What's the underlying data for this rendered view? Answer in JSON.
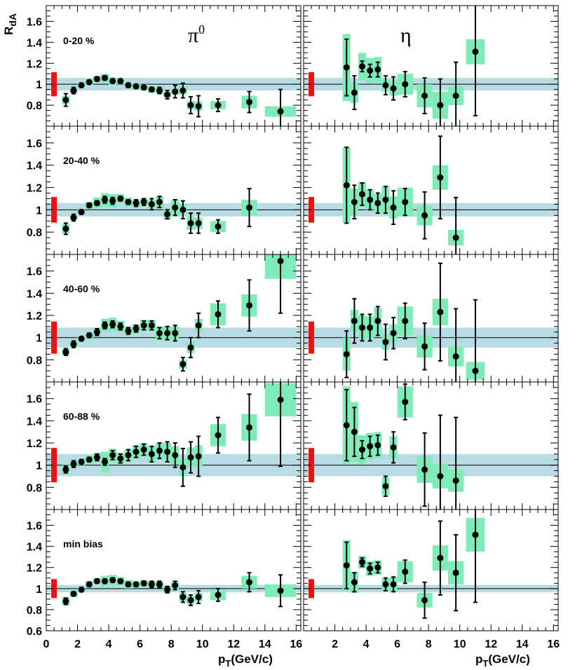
{
  "chart_data": {
    "type": "scatter",
    "ylabel": "R",
    "ylabel_sub": "dA",
    "xlabel": "p",
    "xlabel_sub": "T",
    "xlabel_unit": "(GeV/c)",
    "xlim": [
      0,
      16.3
    ],
    "x_ticks": [
      0,
      2,
      4,
      6,
      8,
      10,
      12,
      14,
      16
    ],
    "x_tick_labels_left": [
      "0",
      "2",
      "4",
      "6",
      "8",
      "10",
      "12",
      "14",
      "16"
    ],
    "x_tick_labels_right": [
      "2",
      "4",
      "6",
      "8",
      "10",
      "12",
      "14",
      "16"
    ],
    "ylim": [
      0.6,
      1.75
    ],
    "y_ticks": [
      0.8,
      1.0,
      1.2,
      1.4,
      1.6
    ],
    "y_tick_labels": [
      "0.8",
      "1",
      "1.2",
      "1.4",
      "1.6"
    ],
    "y_tick_labels_bottom_row": [
      "0.6",
      "0.8",
      "1",
      "1.2",
      "1.4",
      "1.6"
    ],
    "columns": [
      "π0",
      "η"
    ],
    "colors": {
      "point": "#000000",
      "syst_box": "#7eebb8",
      "norm_band": "#b9dbe3",
      "global_err": "#ee1111",
      "ref_line": "#000000"
    },
    "panels": [
      {
        "centrality": "0-20 %",
        "norm_band": [
          0.94,
          1.06
        ],
        "pi0": [
          [
            1.25,
            0.85,
            0.06,
            0.04
          ],
          [
            1.75,
            0.94,
            0.03,
            0.03
          ],
          [
            2.25,
            0.99,
            0.02,
            0.025
          ],
          [
            2.75,
            1.02,
            0.02,
            0.025
          ],
          [
            3.25,
            1.05,
            0.02,
            0.03
          ],
          [
            3.75,
            1.06,
            0.02,
            0.04
          ],
          [
            4.25,
            1.03,
            0.02,
            0.035
          ],
          [
            4.75,
            1.03,
            0.02,
            0.03
          ],
          [
            5.25,
            0.99,
            0.02,
            0.03
          ],
          [
            5.75,
            0.98,
            0.02,
            0.03
          ],
          [
            6.25,
            0.97,
            0.02,
            0.03
          ],
          [
            6.75,
            0.95,
            0.02,
            0.03
          ],
          [
            7.25,
            0.94,
            0.03,
            0.03
          ],
          [
            7.75,
            0.9,
            0.04,
            0.03
          ],
          [
            8.25,
            0.93,
            0.06,
            0.03
          ],
          [
            8.75,
            0.94,
            0.07,
            0.04
          ],
          [
            9.25,
            0.8,
            0.08,
            0.04
          ],
          [
            9.75,
            0.79,
            0.1,
            0.045
          ],
          [
            11.0,
            0.8,
            0.06,
            0.04
          ],
          [
            13.0,
            0.83,
            0.1,
            0.06
          ],
          [
            15.0,
            0.74,
            0.21,
            0.05
          ]
        ],
        "eta": [
          [
            2.75,
            1.16,
            0.27,
            0.32
          ],
          [
            3.25,
            0.92,
            0.16,
            0.1
          ],
          [
            3.75,
            1.17,
            0.05,
            0.13
          ],
          [
            4.25,
            1.13,
            0.06,
            0.12
          ],
          [
            4.75,
            1.14,
            0.07,
            0.12
          ],
          [
            5.25,
            0.99,
            0.09,
            0.06
          ],
          [
            5.75,
            0.96,
            0.11,
            0.07
          ],
          [
            6.5,
            1.0,
            0.12,
            0.1
          ],
          [
            7.75,
            0.89,
            0.17,
            0.11
          ],
          [
            8.75,
            0.8,
            0.25,
            0.13
          ],
          [
            9.75,
            0.89,
            0.32,
            0.09
          ],
          [
            11.0,
            1.31,
            0.61,
            0.12
          ]
        ]
      },
      {
        "centrality": "20-40 %",
        "norm_band": [
          0.94,
          1.06
        ],
        "pi0": [
          [
            1.25,
            0.83,
            0.05,
            0.04
          ],
          [
            1.75,
            0.93,
            0.03,
            0.02
          ],
          [
            2.25,
            0.98,
            0.02,
            0.02
          ],
          [
            2.75,
            1.04,
            0.02,
            0.03
          ],
          [
            3.25,
            1.06,
            0.02,
            0.05
          ],
          [
            3.75,
            1.09,
            0.03,
            0.06
          ],
          [
            4.25,
            1.08,
            0.03,
            0.06
          ],
          [
            4.75,
            1.1,
            0.02,
            0.04
          ],
          [
            5.25,
            1.07,
            0.02,
            0.04
          ],
          [
            5.75,
            1.06,
            0.03,
            0.03
          ],
          [
            6.25,
            1.07,
            0.03,
            0.03
          ],
          [
            6.75,
            1.05,
            0.05,
            0.04
          ],
          [
            7.25,
            1.07,
            0.05,
            0.05
          ],
          [
            7.75,
            0.96,
            0.04,
            0.05
          ],
          [
            8.25,
            1.02,
            0.07,
            0.07
          ],
          [
            8.75,
            1.0,
            0.08,
            0.05
          ],
          [
            9.25,
            0.88,
            0.09,
            0.06
          ],
          [
            9.75,
            0.88,
            0.09,
            0.05
          ],
          [
            11.0,
            0.85,
            0.06,
            0.05
          ],
          [
            13.0,
            1.02,
            0.17,
            0.07
          ]
        ],
        "eta": [
          [
            2.75,
            1.22,
            0.34,
            0.34
          ],
          [
            3.25,
            1.07,
            0.15,
            0.12
          ],
          [
            3.75,
            1.14,
            0.1,
            0.11
          ],
          [
            4.25,
            1.09,
            0.09,
            0.09
          ],
          [
            4.75,
            1.06,
            0.09,
            0.08
          ],
          [
            5.25,
            1.09,
            0.12,
            0.12
          ],
          [
            5.75,
            1.02,
            0.15,
            0.1
          ],
          [
            6.5,
            1.07,
            0.12,
            0.13
          ],
          [
            7.75,
            0.95,
            0.21,
            0.09
          ],
          [
            8.75,
            1.29,
            0.37,
            0.11
          ],
          [
            9.75,
            0.75,
            0.36,
            0.07
          ]
        ]
      },
      {
        "centrality": "40-60 %",
        "norm_band": [
          0.91,
          1.09
        ],
        "pi0": [
          [
            1.25,
            0.87,
            0.03,
            0.03
          ],
          [
            1.75,
            0.94,
            0.03,
            0.03
          ],
          [
            2.25,
            0.99,
            0.02,
            0.02
          ],
          [
            2.75,
            1.02,
            0.02,
            0.03
          ],
          [
            3.25,
            1.05,
            0.03,
            0.04
          ],
          [
            3.75,
            1.11,
            0.03,
            0.06
          ],
          [
            4.25,
            1.12,
            0.03,
            0.06
          ],
          [
            4.75,
            1.1,
            0.03,
            0.05
          ],
          [
            5.25,
            1.06,
            0.03,
            0.04
          ],
          [
            5.75,
            1.08,
            0.03,
            0.04
          ],
          [
            6.25,
            1.11,
            0.04,
            0.05
          ],
          [
            6.75,
            1.11,
            0.04,
            0.05
          ],
          [
            7.25,
            1.04,
            0.05,
            0.06
          ],
          [
            7.75,
            1.04,
            0.06,
            0.06
          ],
          [
            8.25,
            1.04,
            0.07,
            0.06
          ],
          [
            8.75,
            0.76,
            0.06,
            0.04
          ],
          [
            9.25,
            0.91,
            0.09,
            0.05
          ],
          [
            9.75,
            1.11,
            0.11,
            0.06
          ],
          [
            11.0,
            1.21,
            0.12,
            0.1
          ],
          [
            13.0,
            1.29,
            0.23,
            0.1
          ],
          [
            15.0,
            1.69,
            0.47,
            0.16
          ]
        ],
        "eta": [
          [
            2.75,
            0.85,
            0.21,
            0.15
          ],
          [
            3.25,
            1.15,
            0.2,
            0.1
          ],
          [
            3.75,
            1.09,
            0.12,
            0.11
          ],
          [
            4.25,
            1.09,
            0.12,
            0.1
          ],
          [
            4.75,
            1.15,
            0.13,
            0.12
          ],
          [
            5.25,
            0.96,
            0.16,
            0.07
          ],
          [
            5.75,
            1.04,
            0.14,
            0.08
          ],
          [
            6.5,
            1.15,
            0.16,
            0.13
          ],
          [
            7.75,
            0.92,
            0.21,
            0.1
          ],
          [
            8.75,
            1.23,
            0.44,
            0.12
          ],
          [
            9.75,
            0.83,
            0.43,
            0.09
          ],
          [
            11.0,
            0.7,
            0.64,
            0.08
          ]
        ]
      },
      {
        "centrality": "60-88 %",
        "norm_band": [
          0.9,
          1.1
        ],
        "pi0": [
          [
            1.25,
            0.96,
            0.03,
            0.04
          ],
          [
            1.75,
            1.01,
            0.03,
            0.03
          ],
          [
            2.25,
            1.03,
            0.02,
            0.03
          ],
          [
            2.75,
            1.05,
            0.02,
            0.04
          ],
          [
            3.25,
            1.07,
            0.03,
            0.04
          ],
          [
            3.75,
            1.03,
            0.03,
            0.09
          ],
          [
            4.25,
            1.09,
            0.04,
            0.06
          ],
          [
            4.75,
            1.06,
            0.04,
            0.05
          ],
          [
            5.25,
            1.09,
            0.05,
            0.05
          ],
          [
            5.75,
            1.12,
            0.05,
            0.06
          ],
          [
            6.25,
            1.14,
            0.05,
            0.06
          ],
          [
            6.75,
            1.1,
            0.07,
            0.07
          ],
          [
            7.25,
            1.13,
            0.07,
            0.07
          ],
          [
            7.75,
            1.12,
            0.09,
            0.08
          ],
          [
            8.25,
            1.09,
            0.11,
            0.08
          ],
          [
            8.75,
            0.98,
            0.17,
            0.08
          ],
          [
            9.25,
            1.07,
            0.14,
            0.09
          ],
          [
            9.75,
            1.08,
            0.18,
            0.1
          ],
          [
            11.0,
            1.27,
            0.16,
            0.1
          ],
          [
            13.0,
            1.34,
            0.3,
            0.12
          ],
          [
            15.0,
            1.59,
            0.6,
            0.15
          ]
        ],
        "eta": [
          [
            2.75,
            1.36,
            0.32,
            0.35
          ],
          [
            3.25,
            1.3,
            0.22,
            0.27
          ],
          [
            3.75,
            1.14,
            0.08,
            0.13
          ],
          [
            4.25,
            1.17,
            0.09,
            0.12
          ],
          [
            4.75,
            1.18,
            0.09,
            0.12
          ],
          [
            5.25,
            0.81,
            0.09,
            0.08
          ],
          [
            5.75,
            1.16,
            0.14,
            0.1
          ],
          [
            6.5,
            1.57,
            0.16,
            0.14
          ],
          [
            7.75,
            0.96,
            0.33,
            0.12
          ],
          [
            8.75,
            0.9,
            0.55,
            0.11
          ],
          [
            9.75,
            0.86,
            0.57,
            0.1
          ]
        ]
      },
      {
        "centrality": "min bias",
        "norm_band": [
          0.965,
          1.035
        ],
        "pi0": [
          [
            1.25,
            0.88,
            0.03,
            0.04
          ],
          [
            1.75,
            0.95,
            0.02,
            0.03
          ],
          [
            2.25,
            0.99,
            0.02,
            0.02
          ],
          [
            2.75,
            1.04,
            0.02,
            0.03
          ],
          [
            3.25,
            1.07,
            0.02,
            0.03
          ],
          [
            3.75,
            1.07,
            0.02,
            0.05
          ],
          [
            4.25,
            1.08,
            0.02,
            0.05
          ],
          [
            4.75,
            1.07,
            0.02,
            0.04
          ],
          [
            5.25,
            1.04,
            0.02,
            0.04
          ],
          [
            5.75,
            1.04,
            0.02,
            0.03
          ],
          [
            6.25,
            1.05,
            0.02,
            0.03
          ],
          [
            6.75,
            1.04,
            0.03,
            0.03
          ],
          [
            7.25,
            1.04,
            0.03,
            0.03
          ],
          [
            7.75,
            0.99,
            0.03,
            0.03
          ],
          [
            8.25,
            1.03,
            0.04,
            0.04
          ],
          [
            8.75,
            0.92,
            0.05,
            0.04
          ],
          [
            9.25,
            0.89,
            0.05,
            0.04
          ],
          [
            9.75,
            0.92,
            0.06,
            0.04
          ],
          [
            11.0,
            0.94,
            0.06,
            0.05
          ],
          [
            13.0,
            1.06,
            0.09,
            0.06
          ],
          [
            15.0,
            0.98,
            0.15,
            0.06
          ]
        ],
        "eta": [
          [
            2.75,
            1.22,
            0.22,
            0.24
          ],
          [
            3.25,
            1.06,
            0.09,
            0.1
          ],
          [
            3.75,
            1.25,
            0.04,
            0.06
          ],
          [
            4.25,
            1.19,
            0.05,
            0.07
          ],
          [
            4.75,
            1.2,
            0.05,
            0.07
          ],
          [
            5.25,
            1.04,
            0.06,
            0.06
          ],
          [
            5.75,
            1.04,
            0.07,
            0.07
          ],
          [
            6.5,
            1.16,
            0.11,
            0.1
          ],
          [
            7.75,
            0.89,
            0.17,
            0.07
          ],
          [
            8.75,
            1.29,
            0.35,
            0.12
          ],
          [
            9.75,
            1.15,
            0.36,
            0.11
          ],
          [
            11.0,
            1.51,
            0.64,
            0.16
          ]
        ]
      }
    ]
  }
}
